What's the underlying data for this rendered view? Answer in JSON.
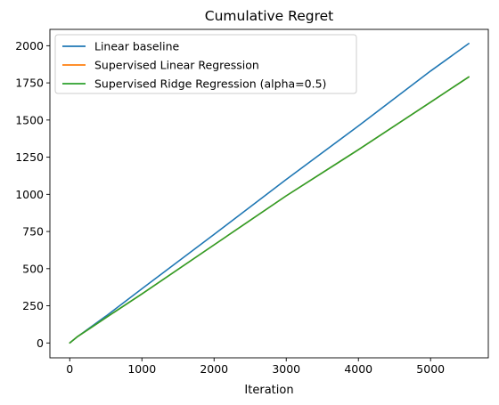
{
  "chart_data": {
    "type": "line",
    "title": "Cumulative Regret",
    "xlabel": "Iteration",
    "ylabel": "",
    "xlim": [
      -275,
      5800
    ],
    "ylim": [
      -100,
      2110
    ],
    "x_ticks": [
      0,
      1000,
      2000,
      3000,
      4000,
      5000
    ],
    "y_ticks": [
      0,
      250,
      500,
      750,
      1000,
      1250,
      1500,
      1750,
      2000
    ],
    "grid": false,
    "legend_position": "top-left",
    "series": [
      {
        "name": "Linear baseline",
        "color": "#1f77b4",
        "x": [
          0,
          100,
          300,
          500,
          1000,
          2000,
          3000,
          4000,
          5000,
          5530
        ],
        "y": [
          0,
          40,
          110,
          180,
          365,
          730,
          1100,
          1460,
          1830,
          2015
        ]
      },
      {
        "name": "Supervised Linear Regression",
        "color": "#ff7f0e",
        "x": [
          0,
          100,
          300,
          500,
          1000,
          2000,
          3000,
          4000,
          5000,
          5530
        ],
        "y": [
          0,
          40,
          105,
          170,
          330,
          660,
          990,
          1300,
          1620,
          1790
        ]
      },
      {
        "name": "Supervised Ridge Regression (alpha=0.5)",
        "color": "#2ca02c",
        "x": [
          0,
          100,
          300,
          500,
          1000,
          2000,
          3000,
          4000,
          5000,
          5530
        ],
        "y": [
          0,
          40,
          105,
          170,
          330,
          660,
          990,
          1300,
          1620,
          1790
        ]
      }
    ]
  }
}
